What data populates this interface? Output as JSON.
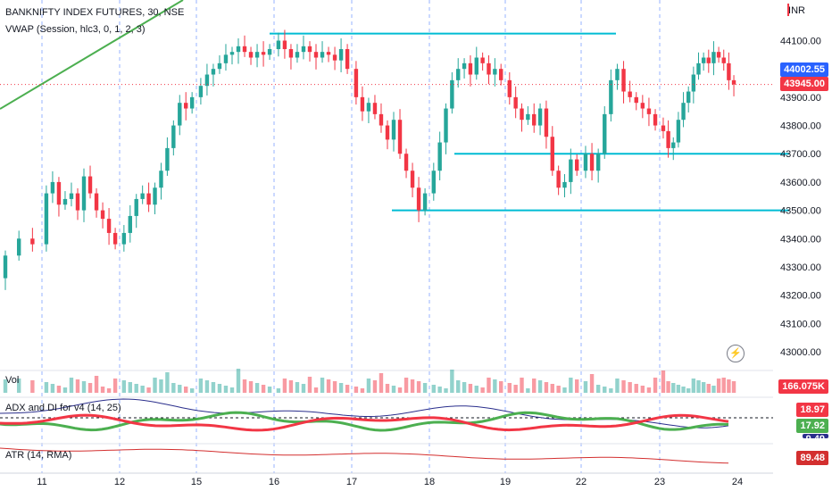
{
  "header": {
    "title": "BANKNIFTY INDEX FUTURES, 30, NSE",
    "vwap": "VWAP (Session, hlc3, 0, 1, 2, 3)",
    "currency": "INR"
  },
  "panels": {
    "vol_label": "Vol",
    "vol_value": "166.075K",
    "adx_label": "ADX and DI for v4 (14, 25)",
    "adx_values": [
      "18.97",
      "17.92",
      "9.49"
    ],
    "atr_label": "ATR (14, RMA)",
    "atr_value": "89.48"
  },
  "price_badges": {
    "upper": "44002.55",
    "lower": "43945.00"
  },
  "colors": {
    "up": "#26a69a",
    "down": "#f23645",
    "trend": "#4caf50",
    "level": "#00bcd4",
    "adx_red": "#f23645",
    "adx_green": "#4caf50",
    "adx_blue": "#2a2e8c",
    "atr": "#d32f2f",
    "badge_blue": "#2962ff"
  },
  "chart_data": {
    "type": "candlestick",
    "symbol": "BANKNIFTY INDEX FUTURES",
    "interval": "30",
    "exchange": "NSE",
    "y_ticks": [
      43000,
      43100,
      43200,
      43300,
      43400,
      43500,
      43600,
      43700,
      43800,
      43900,
      44000,
      44100
    ],
    "y_tick_labels": [
      "43000.00",
      "43100.00",
      "43200.00",
      "43300.00",
      "43400.00",
      "43500.00",
      "43600.00",
      "43700.00",
      "43800.00",
      "43900.00",
      "44000.00",
      "44100.00"
    ],
    "ylim": [
      42920,
      44180
    ],
    "x_labels": [
      "11",
      "12",
      "15",
      "16",
      "17",
      "18",
      "19",
      "22",
      "23",
      "24"
    ],
    "last_price": 43945.0,
    "marked_price": 44002.55,
    "horizontal_levels": [
      {
        "price": 44125,
        "from_day": "16",
        "to_day": "22"
      },
      {
        "price": 43700,
        "from_day": "18",
        "to_day": "24"
      },
      {
        "price": 43500,
        "from_day": "17",
        "to_day": "24"
      }
    ],
    "trendline": {
      "from_price": 43800,
      "to_price": 44750
    },
    "session_closes": [
      {
        "day": "10",
        "points": [
          43200,
          43120,
          43260,
          43340,
          43400,
          43380
        ]
      },
      {
        "day": "11",
        "points": [
          43380,
          43560,
          43600,
          43520,
          43540,
          43560,
          43500,
          43620,
          43560,
          43500,
          43470,
          43420,
          43380
        ]
      },
      {
        "day": "12",
        "points": [
          43380,
          43420,
          43480,
          43540,
          43560,
          43520,
          43580,
          43640,
          43720,
          43800,
          43880,
          43860,
          43900
        ]
      },
      {
        "day": "15",
        "points": [
          43900,
          43940,
          43980,
          44000,
          44020,
          44050,
          44060,
          44080,
          44060,
          44040,
          44060,
          44050,
          44070
        ]
      },
      {
        "day": "16",
        "points": [
          44070,
          44100,
          44070,
          44040,
          44060,
          44080,
          44060,
          44040,
          44060,
          44050,
          44030,
          44070,
          44000
        ]
      },
      {
        "day": "17",
        "points": [
          44000,
          43900,
          43850,
          43880,
          43840,
          43800,
          43750,
          43820,
          43700,
          43640,
          43580,
          43500,
          43560
        ]
      },
      {
        "day": "18",
        "points": [
          43560,
          43640,
          43740,
          43860,
          43960,
          44000,
          44020,
          43980,
          44040,
          44020,
          43980,
          44000,
          43960
        ]
      },
      {
        "day": "19",
        "points": [
          43960,
          43900,
          43860,
          43820,
          43840,
          43800,
          43860,
          43760,
          43640,
          43580,
          43600,
          43680,
          43640
        ]
      },
      {
        "day": "22",
        "points": [
          43640,
          43700,
          43640,
          43700,
          43840,
          43960,
          44000,
          43920,
          43900,
          43880,
          43860,
          43840,
          43800
        ]
      },
      {
        "day": "23",
        "points": [
          43800,
          43780,
          43720,
          43740,
          43820,
          43880,
          43920,
          43980,
          44020,
          44040,
          44020,
          44060,
          44040,
          44020,
          43960,
          43945
        ]
      }
    ]
  }
}
